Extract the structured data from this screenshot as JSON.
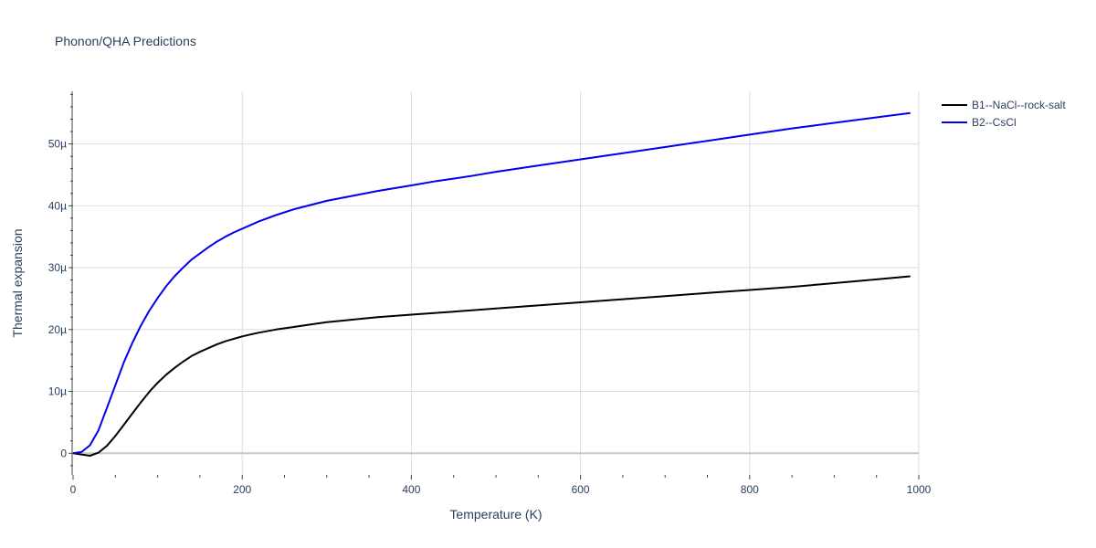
{
  "chart_data": {
    "type": "line",
    "title": "Phonon/QHA Predictions",
    "xlabel": "Temperature (K)",
    "ylabel": "Thermal expansion",
    "xlim": [
      0,
      1000
    ],
    "ylim": [
      -3.5,
      58.5
    ],
    "unit_scale": 1e-06,
    "x_ticks": [
      {
        "value": 0,
        "label": "0"
      },
      {
        "value": 200,
        "label": "200"
      },
      {
        "value": 400,
        "label": "400"
      },
      {
        "value": 600,
        "label": "600"
      },
      {
        "value": 800,
        "label": "800"
      },
      {
        "value": 1000,
        "label": "1000"
      }
    ],
    "y_ticks": [
      {
        "value": 0,
        "label": "0"
      },
      {
        "value": 10,
        "label": "10µ"
      },
      {
        "value": 20,
        "label": "20µ"
      },
      {
        "value": 30,
        "label": "30µ"
      },
      {
        "value": 40,
        "label": "40µ"
      },
      {
        "value": 50,
        "label": "50µ"
      }
    ],
    "grid": true,
    "legend_position": "top-right",
    "series": [
      {
        "name": "B1--NaCl--rock-salt",
        "color": "#000000",
        "x": [
          0,
          10,
          20,
          30,
          40,
          50,
          60,
          70,
          80,
          90,
          100,
          110,
          120,
          130,
          140,
          150,
          160,
          170,
          180,
          190,
          200,
          210,
          220,
          240,
          260,
          280,
          300,
          330,
          360,
          400,
          450,
          500,
          550,
          600,
          650,
          700,
          750,
          800,
          850,
          900,
          950,
          990
        ],
        "y": [
          0,
          -0.2,
          -0.4,
          0.1,
          1.2,
          2.8,
          4.6,
          6.4,
          8.2,
          9.9,
          11.4,
          12.7,
          13.8,
          14.8,
          15.7,
          16.4,
          17.0,
          17.6,
          18.1,
          18.5,
          18.9,
          19.2,
          19.5,
          20.0,
          20.4,
          20.8,
          21.2,
          21.6,
          22.0,
          22.4,
          22.9,
          23.4,
          23.9,
          24.4,
          24.9,
          25.4,
          25.9,
          26.4,
          26.9,
          27.5,
          28.1,
          28.6
        ]
      },
      {
        "name": "B2--CsCl",
        "color": "#0000ee",
        "x": [
          0,
          10,
          20,
          30,
          40,
          50,
          60,
          70,
          80,
          90,
          100,
          110,
          120,
          130,
          140,
          150,
          160,
          170,
          180,
          190,
          200,
          220,
          240,
          260,
          280,
          300,
          330,
          360,
          400,
          430,
          470,
          500,
          550,
          600,
          650,
          700,
          750,
          800,
          850,
          900,
          950,
          990
        ],
        "y": [
          0,
          0.2,
          1.3,
          3.7,
          7.3,
          11.0,
          14.7,
          17.8,
          20.6,
          23.0,
          25.1,
          27.0,
          28.6,
          30.0,
          31.3,
          32.3,
          33.3,
          34.2,
          35.0,
          35.7,
          36.3,
          37.5,
          38.5,
          39.4,
          40.1,
          40.8,
          41.6,
          42.4,
          43.3,
          44.0,
          44.8,
          45.5,
          46.5,
          47.5,
          48.5,
          49.5,
          50.5,
          51.5,
          52.5,
          53.4,
          54.3,
          55.0
        ]
      }
    ]
  }
}
